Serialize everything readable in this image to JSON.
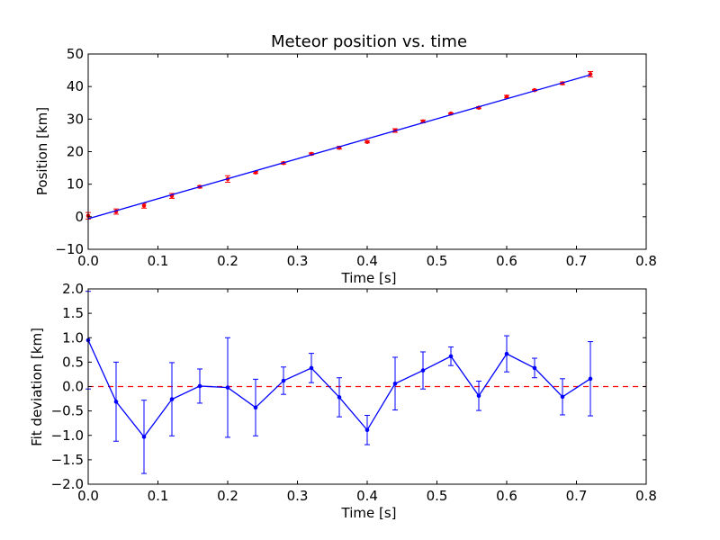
{
  "chart_data": [
    {
      "type": "scatter",
      "title": "Meteor position vs. time",
      "xlabel": "Time [s]",
      "ylabel": "Position [km]",
      "xlim": [
        0.0,
        0.8
      ],
      "ylim": [
        -10,
        50
      ],
      "x_ticks": [
        "0.0",
        "0.1",
        "0.2",
        "0.3",
        "0.4",
        "0.5",
        "0.6",
        "0.7",
        "0.8"
      ],
      "y_ticks": [
        "−10",
        "0",
        "10",
        "20",
        "30",
        "40",
        "50"
      ],
      "grid": false,
      "series": [
        {
          "kind": "errorbar-points",
          "color": "#ff0000",
          "x": [
            0.0,
            0.04,
            0.08,
            0.12,
            0.16,
            0.2,
            0.24,
            0.28,
            0.32,
            0.36,
            0.4,
            0.44,
            0.48,
            0.52,
            0.56,
            0.6,
            0.64,
            0.68,
            0.72
          ],
          "y": [
            0.3,
            1.6,
            3.4,
            6.4,
            9.2,
            11.6,
            13.6,
            16.5,
            19.3,
            21.2,
            23.0,
            26.5,
            29.3,
            31.7,
            33.5,
            36.9,
            38.9,
            41.0,
            43.8
          ],
          "yerr": [
            1.0,
            0.8,
            0.75,
            0.75,
            0.35,
            1.0,
            0.3,
            0.3,
            0.3,
            0.4,
            0.3,
            0.55,
            0.4,
            0.2,
            0.3,
            0.4,
            0.2,
            0.4,
            0.8
          ]
        },
        {
          "kind": "line",
          "color": "#0000ff",
          "x": [
            0.0,
            0.72
          ],
          "y": [
            -0.6,
            43.6
          ]
        }
      ]
    },
    {
      "type": "line",
      "xlabel": "Time [s]",
      "ylabel": "Fit deviation [km]",
      "xlim": [
        0.0,
        0.8
      ],
      "ylim": [
        -2.0,
        2.0
      ],
      "x_ticks": [
        "0.0",
        "0.1",
        "0.2",
        "0.3",
        "0.4",
        "0.5",
        "0.6",
        "0.7",
        "0.8"
      ],
      "y_ticks": [
        "−2.0",
        "−1.5",
        "−1.0",
        "−0.5",
        "0.0",
        "0.5",
        "1.0",
        "1.5",
        "2.0"
      ],
      "grid": false,
      "reference_line": {
        "y": 0.0,
        "color": "#ff0000",
        "style": "dashed"
      },
      "series": [
        {
          "kind": "errorbar-line",
          "color": "#0000ff",
          "x": [
            0.0,
            0.04,
            0.08,
            0.12,
            0.16,
            0.2,
            0.24,
            0.28,
            0.32,
            0.36,
            0.4,
            0.44,
            0.48,
            0.52,
            0.56,
            0.6,
            0.64,
            0.68,
            0.72
          ],
          "y": [
            0.95,
            -0.31,
            -1.03,
            -0.26,
            0.01,
            -0.02,
            -0.43,
            0.12,
            0.38,
            -0.22,
            -0.89,
            0.06,
            0.33,
            0.62,
            -0.19,
            0.67,
            0.38,
            -0.21,
            0.16
          ],
          "yerr": [
            1.0,
            0.81,
            0.75,
            0.75,
            0.35,
            1.02,
            0.58,
            0.28,
            0.3,
            0.4,
            0.3,
            0.54,
            0.38,
            0.19,
            0.3,
            0.37,
            0.2,
            0.37,
            0.76
          ]
        }
      ]
    }
  ]
}
